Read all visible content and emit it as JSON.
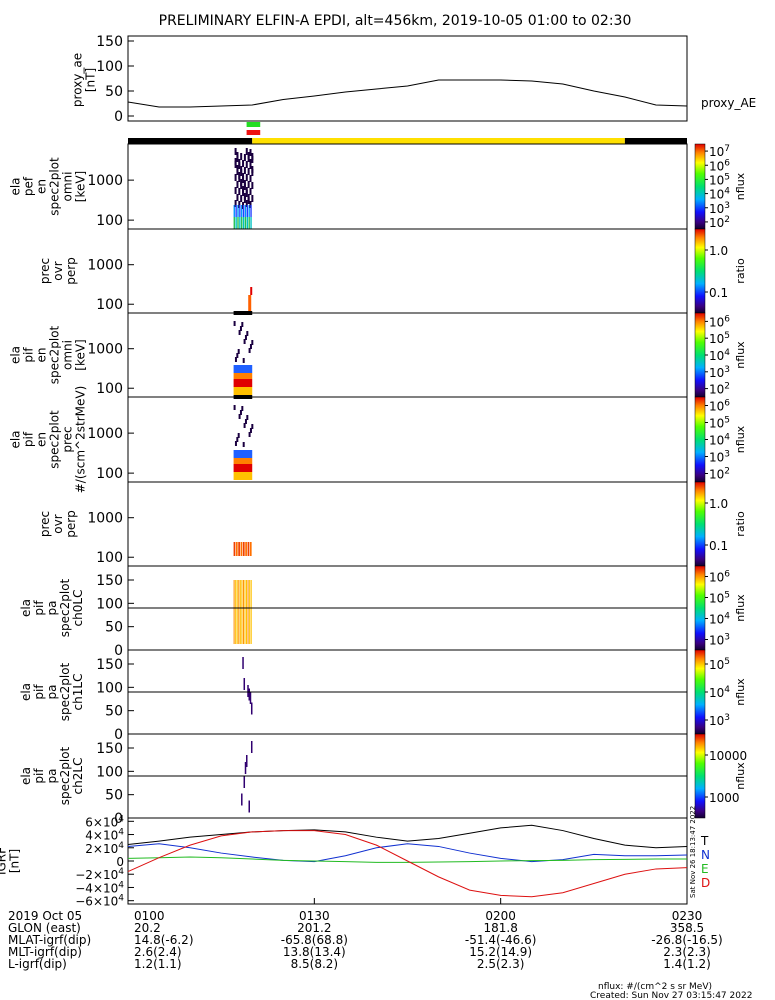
{
  "title": "PRELIMINARY ELFIN-A EPDI, alt=456km, 2019-10-05 01:00 to 02:30",
  "footer": {
    "nflux_units": "nflux: #/(cm^2 s sr MeV)",
    "created": "Created: Sun Nov 27 03:15:47 2022",
    "side_stamp": "Sat Nov 26 18:13:47 2022"
  },
  "time_axis": {
    "range": [
      "01:00",
      "02:30"
    ],
    "tick_labels": [
      "0100",
      "0130",
      "0200",
      "0230"
    ]
  },
  "ephemeris": {
    "rows": [
      {
        "label": "2019 Oct 05",
        "values": [
          "0100",
          "0130",
          "0200",
          "0230"
        ]
      },
      {
        "label": "GLON (east)",
        "values": [
          "20.2",
          "201.2",
          "181.8",
          "358.5"
        ]
      },
      {
        "label": "MLAT-igrf(dip)",
        "values": [
          "14.8(-6.2)",
          "-65.8(68.8)",
          "-51.4(-46.6)",
          "-26.8(-16.5)"
        ]
      },
      {
        "label": "MLT-igrf(dip)",
        "values": [
          "2.6(2.4)",
          "13.8(13.4)",
          "15.2(14.9)",
          "2.3(2.3)"
        ]
      },
      {
        "label": "L-igrf(dip)",
        "values": [
          "1.2(1.1)",
          "8.5(8.2)",
          "2.5(2.3)",
          "1.4(1.2)"
        ]
      }
    ]
  },
  "colors": {
    "flag_green": "#22dd22",
    "flag_red": "#ee1111",
    "flag_yellow": "#ffe000",
    "black": "#000000",
    "igrf_T": "#000000",
    "igrf_N": "#1030d0",
    "igrf_E": "#22bb22",
    "igrf_D": "#dd1010"
  },
  "chart_data": [
    {
      "type": "line",
      "panel": "proxy_ae",
      "ylabel": [
        "proxy_ae",
        "[nT]"
      ],
      "legend": "proxy_AE",
      "ylim": [
        -10,
        160
      ],
      "yticks": [
        0,
        50,
        100,
        150
      ],
      "x": [
        "01:00",
        "01:05",
        "01:10",
        "01:15",
        "01:20",
        "01:25",
        "01:30",
        "01:35",
        "01:40",
        "01:45",
        "01:50",
        "01:55",
        "02:00",
        "02:05",
        "02:10",
        "02:15",
        "02:20",
        "02:25",
        "02:30"
      ],
      "values": [
        28,
        18,
        18,
        20,
        22,
        33,
        40,
        48,
        54,
        60,
        72,
        72,
        72,
        70,
        64,
        50,
        38,
        22,
        20
      ]
    },
    {
      "type": "timeline",
      "panel": "status_bars",
      "segments": [
        {
          "start": "01:00",
          "end": "01:20",
          "color": "black"
        },
        {
          "start": "01:20",
          "end": "02:20",
          "color": "yellow"
        },
        {
          "start": "02:20",
          "end": "02:30",
          "color": "black"
        }
      ],
      "markers": [
        {
          "start": "01:17",
          "end": "01:20",
          "color": "green"
        },
        {
          "start": "01:17",
          "end": "01:20",
          "color": "red"
        }
      ]
    },
    {
      "type": "heatmap",
      "panel": "ela_pef_en_spec2plot_omni",
      "ylabel": [
        "ela",
        "pef",
        "en",
        "spec2plot",
        "omni",
        "[keV]"
      ],
      "yscale": "log",
      "ylim": [
        60,
        8000
      ],
      "yticks": [
        100,
        1000
      ],
      "zlabel": "nflux",
      "zlim": [
        50,
        10000000
      ],
      "zticks": [
        "10^2",
        "10^3",
        "10^4",
        "10^5",
        "10^6",
        "10^7"
      ],
      "active_interval": [
        "01:17",
        "01:20"
      ]
    },
    {
      "type": "heatmap",
      "panel": "prec_ovr_perp",
      "ylabel": [
        "prec",
        "ovr",
        "perp"
      ],
      "yscale": "log",
      "ylim": [
        60,
        8000
      ],
      "yticks": [
        100,
        1000
      ],
      "zlabel": "ratio",
      "zscale": "log",
      "zlim": [
        0.01,
        1.5
      ],
      "zticks": [
        "0.1",
        "1.0"
      ],
      "active_interval": [
        "01:19",
        "01:20"
      ]
    },
    {
      "type": "heatmap",
      "panel": "ela_pif_en_spec2plot_omni",
      "ylabel": [
        "ela",
        "pif",
        "en",
        "spec2plot",
        "omni",
        "[keV]"
      ],
      "yscale": "log",
      "ylim": [
        60,
        8000
      ],
      "yticks": [
        100,
        1000
      ],
      "zlabel": "nflux",
      "zlim": [
        50,
        2000000
      ],
      "zticks": [
        "10^2",
        "10^3",
        "10^4",
        "10^5",
        "10^6"
      ],
      "active_interval": [
        "01:17",
        "01:20"
      ]
    },
    {
      "type": "heatmap",
      "panel": "ela_pif_en_spec2plot_prec",
      "ylabel": [
        "ela",
        "pif",
        "en",
        "spec2plot",
        "prec",
        "#/(scm^2strMeV)"
      ],
      "yscale": "log",
      "ylim": [
        60,
        8000
      ],
      "yticks": [
        100,
        1000
      ],
      "zlabel": "nflux",
      "zlim": [
        50,
        2000000
      ],
      "zticks": [
        "10^2",
        "10^3",
        "10^4",
        "10^5",
        "10^6"
      ],
      "active_interval": [
        "01:17",
        "01:20"
      ]
    },
    {
      "type": "heatmap",
      "panel": "prec_ovr_perp_2",
      "ylabel": [
        "prec",
        "ovr",
        "perp"
      ],
      "yscale": "log",
      "ylim": [
        60,
        8000
      ],
      "yticks": [
        100,
        1000
      ],
      "zlabel": "ratio",
      "zscale": "log",
      "zlim": [
        0.01,
        1.5
      ],
      "zticks": [
        "0.1",
        "1.0"
      ],
      "active_interval": [
        "01:17",
        "01:20"
      ]
    },
    {
      "type": "heatmap",
      "panel": "ela_pif_pa_spec2plot_ch0LC",
      "ylabel": [
        "ela",
        "pif",
        "pa",
        "spec2plot",
        "ch0LC"
      ],
      "ylim": [
        0,
        180
      ],
      "yticks": [
        0,
        50,
        100,
        150
      ],
      "hline": 90,
      "zlabel": "nflux",
      "zlim": [
        300,
        2000000
      ],
      "zticks": [
        "10^3",
        "10^4",
        "10^5",
        "10^6"
      ],
      "active_interval": [
        "01:17",
        "01:20"
      ]
    },
    {
      "type": "heatmap",
      "panel": "ela_pif_pa_spec2plot_ch1LC",
      "ylabel": [
        "ela",
        "pif",
        "pa",
        "spec2plot",
        "ch1LC"
      ],
      "ylim": [
        0,
        180
      ],
      "yticks": [
        0,
        50,
        100,
        150
      ],
      "hline": 90,
      "zlabel": "nflux",
      "zlim": [
        300,
        200000
      ],
      "zticks": [
        "10^3",
        "10^4",
        "10^5"
      ],
      "active_interval": [
        "01:18",
        "01:20"
      ]
    },
    {
      "type": "heatmap",
      "panel": "ela_pif_pa_spec2plot_ch2LC",
      "ylabel": [
        "ela",
        "pif",
        "pa",
        "spec2plot",
        "ch2LC"
      ],
      "ylim": [
        0,
        180
      ],
      "yticks": [
        0,
        50,
        100,
        150
      ],
      "hline": 90,
      "zlabel": "nflux",
      "zlim": [
        500,
        30000
      ],
      "zticks": [
        "1000",
        "10000"
      ],
      "active_interval": [
        "01:18",
        "01:20"
      ]
    },
    {
      "type": "line",
      "panel": "IGRF",
      "ylabel": [
        "IGRF",
        "[nT]"
      ],
      "ylim": [
        -65000,
        65000
      ],
      "yticks": [
        "6×10^4",
        "4×10^4",
        "2×10^4",
        "0",
        "−2×10^4",
        "−4×10^4",
        "−6×10^4"
      ],
      "x": [
        "01:00",
        "01:05",
        "01:10",
        "01:15",
        "01:20",
        "01:25",
        "01:30",
        "01:35",
        "01:40",
        "01:45",
        "01:50",
        "01:55",
        "02:00",
        "02:05",
        "02:10",
        "02:15",
        "02:20",
        "02:25",
        "02:30"
      ],
      "series": [
        {
          "name": "T",
          "values": [
            25000,
            30000,
            36000,
            40000,
            44000,
            46000,
            47000,
            44000,
            36000,
            30000,
            34000,
            42000,
            50000,
            54000,
            46000,
            34000,
            24000,
            20000,
            22000
          ]
        },
        {
          "name": "N",
          "values": [
            22000,
            26000,
            20000,
            12000,
            6000,
            1000,
            -1000,
            8000,
            20000,
            26000,
            22000,
            12000,
            4000,
            -1000,
            2000,
            10000,
            8000,
            8000,
            9000
          ]
        },
        {
          "name": "E",
          "values": [
            4000,
            5000,
            6000,
            5000,
            3000,
            1000,
            0,
            -1000,
            -2000,
            -2000,
            -1500,
            -1000,
            0,
            500,
            1000,
            2000,
            2500,
            3000,
            3000
          ]
        },
        {
          "name": "D",
          "values": [
            -16000,
            5000,
            24000,
            38000,
            44000,
            46000,
            46000,
            40000,
            24000,
            0,
            -24000,
            -44000,
            -52000,
            -54000,
            -48000,
            -34000,
            -20000,
            -12000,
            -10000
          ]
        }
      ]
    }
  ]
}
